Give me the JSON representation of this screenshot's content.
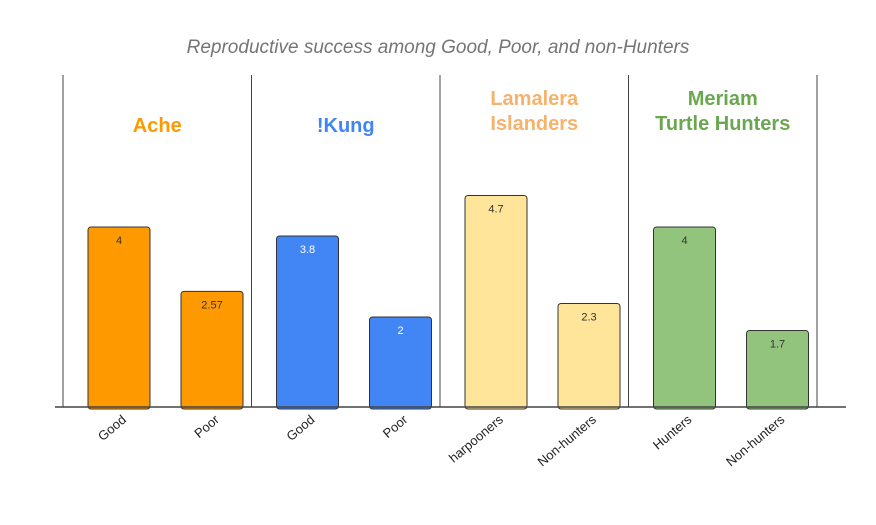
{
  "chart_data": {
    "type": "bar",
    "title": "Reproductive success among Good, Poor, and non-Hunters",
    "xlabel": "",
    "ylabel": "",
    "ylim": [
      0,
      5
    ],
    "grid": false,
    "legend": "none",
    "groups": [
      {
        "name_lines": [
          "Ache"
        ],
        "color": "#ff9900",
        "bars": [
          {
            "category": "Good",
            "value": 4,
            "label": "4"
          },
          {
            "category": "Poor",
            "value": 2.57,
            "label": "2.57"
          }
        ]
      },
      {
        "name_lines": [
          "!Kung"
        ],
        "color": "#4285f4",
        "bars": [
          {
            "category": "Good",
            "value": 3.8,
            "label": "3.8"
          },
          {
            "category": "Poor",
            "value": 2,
            "label": "2"
          }
        ]
      },
      {
        "name_lines": [
          "Lamalera",
          "Islanders"
        ],
        "color": "#ffe599",
        "title_color": "#f6b26b",
        "bars": [
          {
            "category": "harpooners",
            "value": 4.7,
            "label": "4.7"
          },
          {
            "category": "Non-hunters",
            "value": 2.3,
            "label": "2.3"
          }
        ]
      },
      {
        "name_lines": [
          "Meriam",
          "Turtle Hunters"
        ],
        "color": "#93c47d",
        "title_color": "#6aa84f",
        "bars": [
          {
            "category": "Hunters",
            "value": 4,
            "label": "4"
          },
          {
            "category": "Non-hunters",
            "value": 1.7,
            "label": "1.7"
          }
        ]
      }
    ]
  }
}
